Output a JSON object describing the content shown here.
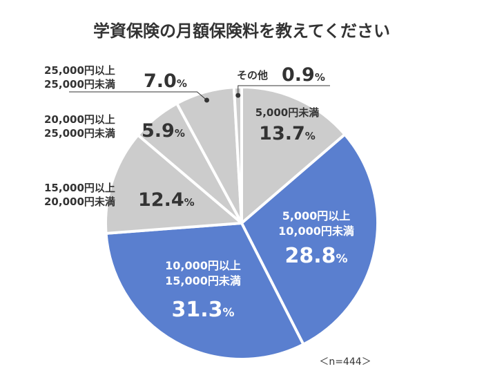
{
  "chart_data": {
    "type": "pie",
    "title": "学資保険の月額保険料を教えてください",
    "sample_size_label": "＜n=444＞",
    "colors": {
      "highlight": "#5a7fcf",
      "gray": "#cccccc",
      "text_dark": "#333333",
      "text_light": "#ffffff"
    },
    "slices": [
      {
        "key": "lt5000",
        "lines": [
          "5,000円未満"
        ],
        "value": 13.7,
        "value_label": "13.7",
        "highlight": false
      },
      {
        "key": "5000_10000",
        "lines": [
          "5,000円以上",
          "10,000円未満"
        ],
        "value": 28.8,
        "value_label": "28.8",
        "highlight": true
      },
      {
        "key": "10000_15000",
        "lines": [
          "10,000円以上",
          "15,000円未満"
        ],
        "value": 31.3,
        "value_label": "31.3",
        "highlight": true
      },
      {
        "key": "15000_20000",
        "lines": [
          "15,000円以上",
          "20,000円未満"
        ],
        "value": 12.4,
        "value_label": "12.4",
        "highlight": false
      },
      {
        "key": "20000_25000",
        "lines": [
          "20,000円以上",
          "25,000円未満"
        ],
        "value": 5.9,
        "value_label": "5.9",
        "highlight": false
      },
      {
        "key": "25000_plus",
        "lines": [
          "25,000円以上",
          "25,000円未満"
        ],
        "value": 7.0,
        "value_label": "7.0",
        "highlight": false
      },
      {
        "key": "other",
        "lines": [
          "その他"
        ],
        "value": 0.9,
        "value_label": "0.9",
        "highlight": false
      }
    ],
    "unit": "%"
  }
}
